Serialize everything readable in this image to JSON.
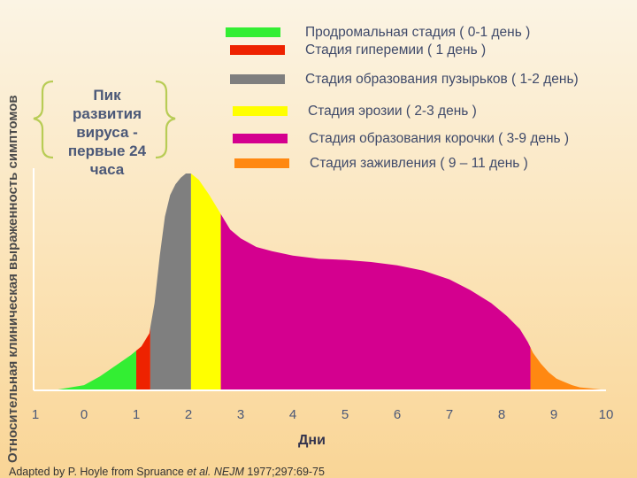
{
  "chart_data": {
    "type": "area",
    "title": "",
    "ylabel": "Относительная клиническая выраженность симптомов",
    "xlabel": "Дни",
    "xtick_labels": [
      "1",
      "0",
      "1",
      "2",
      "3",
      "4",
      "5",
      "6",
      "7",
      "8",
      "9",
      "10"
    ],
    "xlim": [
      -1,
      10
    ],
    "ylim": [
      0,
      1
    ],
    "grid": false,
    "legend_position": "top-right",
    "curve": {
      "x": [
        -0.95,
        -0.5,
        0,
        0.3,
        0.6,
        0.9,
        1.0,
        1.1,
        1.25,
        1.35,
        1.45,
        1.55,
        1.65,
        1.75,
        1.85,
        1.95,
        2.05,
        2.2,
        2.4,
        2.6,
        2.8,
        3.0,
        3.3,
        3.6,
        4.0,
        4.5,
        5.0,
        5.5,
        6.0,
        6.5,
        7.0,
        7.4,
        7.8,
        8.1,
        8.35,
        8.5,
        8.6,
        8.75,
        8.9,
        9.05,
        9.2,
        9.35,
        9.5,
        9.7,
        9.9,
        10.0
      ],
      "y": [
        0.0,
        0.0,
        0.02,
        0.06,
        0.11,
        0.16,
        0.18,
        0.2,
        0.26,
        0.4,
        0.62,
        0.8,
        0.9,
        0.95,
        0.98,
        1.0,
        1.0,
        0.97,
        0.9,
        0.82,
        0.74,
        0.7,
        0.66,
        0.64,
        0.62,
        0.605,
        0.6,
        0.59,
        0.575,
        0.55,
        0.51,
        0.46,
        0.4,
        0.34,
        0.28,
        0.22,
        0.17,
        0.12,
        0.08,
        0.05,
        0.035,
        0.02,
        0.01,
        0.005,
        0.0,
        0.0
      ]
    },
    "stages": [
      {
        "name": "Продромальная стадия ( 0-1 день )",
        "color": "#33ee33",
        "x_start": -0.95,
        "x_end": 1.0
      },
      {
        "name": "Стадия гиперемии ( 1 день )",
        "color": "#ee2200",
        "x_start": 1.0,
        "x_end": 1.27
      },
      {
        "name": "Стадия образования пузырьков ( 1-2 день)",
        "color": "#7f7f7f",
        "x_start": 1.27,
        "x_end": 2.05
      },
      {
        "name": "Стадия эрозии  ( 2-3 день )",
        "color": "#ffff00",
        "x_start": 2.05,
        "x_end": 2.62
      },
      {
        "name": "Стадия образования корочки ( 3-9 день )",
        "color": "#d4008f",
        "x_start": 2.62,
        "x_end": 8.55
      },
      {
        "name": "Стадия заживления ( 9 – 11 день )",
        "color": "#ff8811",
        "x_start": 8.55,
        "x_end": 10.0
      }
    ]
  },
  "peak_note": {
    "lines": [
      "Пик",
      "развития",
      "вируса  -",
      "первые 24",
      "часа"
    ]
  },
  "source": {
    "prefix": "Adapted by P. Hoyle from Spruance ",
    "etal": "et al.",
    "journal": "NEJM",
    "suffix": " 1977;297:69-75"
  },
  "colors": {
    "axis": "#ffffff",
    "brace": "#b8cc55",
    "text": "#3f4a6a"
  }
}
